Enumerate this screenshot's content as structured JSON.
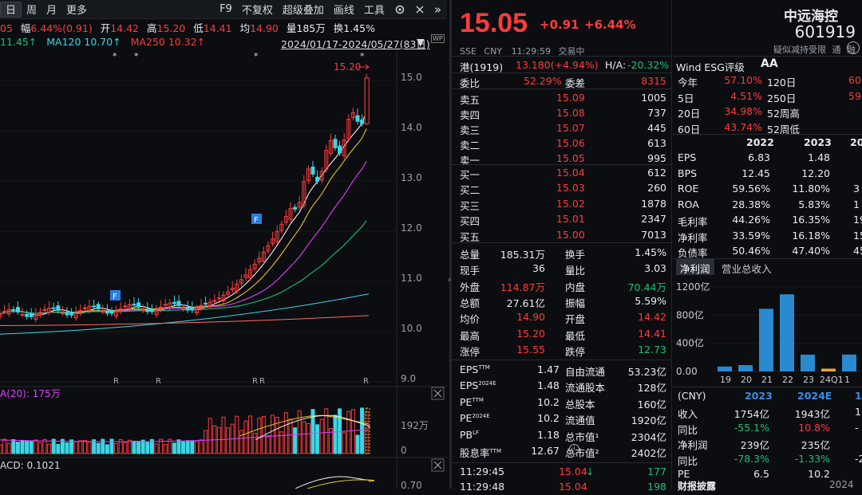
{
  "toolbar": {
    "periods": [
      "日",
      "周",
      "月",
      "更多"
    ],
    "active_period": "日",
    "f9": "F9",
    "fq": "不复权",
    "overlay": "超级叠加",
    "draw": "画线",
    "tools": "工具"
  },
  "info": {
    "prefix": "05",
    "fu_label": "幅",
    "fu_value": "6.44%(0.91)",
    "open_label": "开",
    "open": "14.42",
    "high_label": "高",
    "high": "15.20",
    "low_label": "低",
    "low": "14.41",
    "avg_label": "均",
    "avg": "14.90",
    "vol_label": "量",
    "vol": "185万",
    "turn_label": "换",
    "turn": "1.45%"
  },
  "ma": {
    "ma_a": "11.45↑",
    "ma120": "MA120  10.70↑",
    "ma250": "MA250  10.32↑",
    "range": "2024/01/17-2024/05/27(83日)"
  },
  "kline": {
    "peak_label": "15.20",
    "price_ticks": [
      "15.0",
      "14.0",
      "13.0",
      "12.0",
      "11.0",
      "10.0",
      "9.0"
    ],
    "star_marks": [
      "*",
      "*",
      "*",
      "*"
    ],
    "r_marks": [
      "R",
      "R",
      "R",
      "R",
      "R"
    ],
    "f_badges": [
      "F",
      "F"
    ]
  },
  "volume": {
    "label": "A(20): 175万",
    "ticks": [
      "192万",
      "0"
    ]
  },
  "macd": {
    "label": "ACD: 0.1021",
    "tick": "0.70"
  },
  "quote": {
    "price": "15.05",
    "change": "+0.91",
    "pct": "+6.44%",
    "name": "中远海控",
    "code": "601919",
    "exchange": "SSE",
    "currency": "CNY",
    "time": "11:29:59",
    "status": "交易中",
    "tags": [
      "疑似减持受限",
      "通",
      "融"
    ]
  },
  "hk": {
    "label": "港(1919)",
    "value": "13.180(+4.94%)",
    "ah_label": "H/A:",
    "ah_value": "-20.32%"
  },
  "book": {
    "wb_label": "委比",
    "wb_value": "52.29%",
    "wc_label": "委差",
    "wc_value": "8315",
    "asks": [
      {
        "label": "卖五",
        "price": "15.09",
        "vol": "1005"
      },
      {
        "label": "卖四",
        "price": "15.08",
        "vol": "737"
      },
      {
        "label": "卖三",
        "price": "15.07",
        "vol": "445"
      },
      {
        "label": "卖二",
        "price": "15.06",
        "vol": "613"
      },
      {
        "label": "卖一",
        "price": "15.05",
        "vol": "995"
      }
    ],
    "bids": [
      {
        "label": "买一",
        "price": "15.04",
        "vol": "612"
      },
      {
        "label": "买二",
        "price": "15.03",
        "vol": "260"
      },
      {
        "label": "买三",
        "price": "15.02",
        "vol": "1878"
      },
      {
        "label": "买四",
        "price": "15.01",
        "vol": "2347"
      },
      {
        "label": "买五",
        "price": "15.00",
        "vol": "7013"
      }
    ]
  },
  "stats": [
    {
      "l1": "总量",
      "v1": "185.31万",
      "c1": "white",
      "l2": "换手",
      "v2": "1.45%",
      "c2": "white"
    },
    {
      "l1": "现手",
      "v1": "36",
      "c1": "white",
      "l2": "量比",
      "v2": "3.03",
      "c2": "white"
    },
    {
      "l1": "外盘",
      "v1": "114.87万",
      "c1": "red",
      "l2": "内盘",
      "v2": "70.44万",
      "c2": "green"
    },
    {
      "l1": "总额",
      "v1": "27.61亿",
      "c1": "white",
      "l2": "振幅",
      "v2": "5.59%",
      "c2": "white"
    },
    {
      "l1": "均价",
      "v1": "14.90",
      "c1": "red",
      "l2": "开盘",
      "v2": "14.42",
      "c2": "red"
    },
    {
      "l1": "最高",
      "v1": "15.20",
      "c1": "red",
      "l2": "最低",
      "v2": "14.41",
      "c2": "red"
    },
    {
      "l1": "涨停",
      "v1": "15.55",
      "c1": "red",
      "l2": "跌停",
      "v2": "12.73",
      "c2": "green"
    }
  ],
  "fundamentals": [
    {
      "l1": "EPS",
      "s1": "TTM",
      "v1": "1.47",
      "l2": "自由流通",
      "v2": "53.23亿"
    },
    {
      "l1": "EPS",
      "s1": "2024E",
      "v1": "1.48",
      "l2": "流通股本",
      "v2": "128亿"
    },
    {
      "l1": "PE",
      "s1": "TTM",
      "v1": "10.2",
      "l2": "总股本",
      "v2": "160亿"
    },
    {
      "l1": "PE",
      "s1": "2024E",
      "v1": "10.2",
      "l2": "流通值",
      "v2": "1920亿"
    },
    {
      "l1": "PB",
      "s1": "LF",
      "v1": "1.18",
      "l2": "总市值¹",
      "v2": "2304亿"
    },
    {
      "l1": "股息率",
      "s1": "TTM",
      "v1": "12.67",
      "l2": "总市值²",
      "v2": "2402亿"
    }
  ],
  "ticks": [
    {
      "time": "11:29:45",
      "price": "15.04",
      "arrow": "↓",
      "vol": "177"
    },
    {
      "time": "11:29:48",
      "price": "15.04",
      "arrow": "",
      "vol": "198"
    }
  ],
  "esg": {
    "label": "Wind ESG评级",
    "grade": "AA"
  },
  "perf": [
    {
      "l1": "今年",
      "v1": "57.10%",
      "l2": "120日",
      "v2": "60"
    },
    {
      "l1": "5日",
      "v1": "4.51%",
      "l2": "250日",
      "v2": "59"
    },
    {
      "l1": "20日",
      "v1": "34.98%",
      "l2": "52周高",
      "v2": ""
    },
    {
      "l1": "60日",
      "v1": "43.74%",
      "l2": "52周低",
      "v2": ""
    }
  ],
  "fin": {
    "years": [
      "2022",
      "2023",
      "20"
    ],
    "rows": [
      {
        "label": "EPS",
        "a": "6.83",
        "b": "1.48",
        "c": ""
      },
      {
        "label": "BPS",
        "a": "12.45",
        "b": "12.20",
        "c": ""
      },
      {
        "label": "ROE",
        "a": "59.56%",
        "b": "11.80%",
        "c": "3"
      },
      {
        "label": "ROA",
        "a": "28.38%",
        "b": "5.83%",
        "c": "1"
      },
      {
        "label": "毛利率",
        "a": "44.26%",
        "b": "16.35%",
        "c": "19"
      },
      {
        "label": "净利率",
        "a": "33.59%",
        "b": "16.18%",
        "c": "15"
      },
      {
        "label": "负债率",
        "a": "50.46%",
        "b": "47.40%",
        "c": "45"
      }
    ]
  },
  "profit_tabs": [
    "净利润",
    "营业总收入"
  ],
  "chart_data": {
    "type": "bar",
    "title": "",
    "categories": [
      "19",
      "20",
      "21",
      "22",
      "23",
      "24Q1",
      "1"
    ],
    "values": [
      70,
      90,
      890,
      1095,
      239,
      40,
      240
    ],
    "colors": [
      "#2a8ad0",
      "#2a8ad0",
      "#2a8ad0",
      "#2a8ad0",
      "#2a8ad0",
      "#e8a33d",
      "#2a8ad0"
    ],
    "yticks": [
      "1200亿",
      "800亿",
      "400亿",
      "0.00"
    ],
    "ylim": [
      0,
      1200
    ]
  },
  "summary": {
    "head": [
      "(CNY)",
      "2023",
      "2024E",
      "1"
    ],
    "rows": [
      {
        "label": "收入",
        "a": "1754亿",
        "ac": "white",
        "b": "1943亿",
        "bc": "white",
        "c": "1"
      },
      {
        "label": "同比",
        "a": "-55.1%",
        "ac": "green",
        "b": "10.8%",
        "bc": "red",
        "c": "-"
      },
      {
        "label": "净利润",
        "a": "239亿",
        "ac": "white",
        "b": "235亿",
        "bc": "white",
        "c": ""
      },
      {
        "label": "同比",
        "a": "-78.3%",
        "ac": "green",
        "b": "-1.33%",
        "bc": "green",
        "c": "-2"
      },
      {
        "label": "PE",
        "a": "6.5",
        "ac": "white",
        "b": "10.2",
        "bc": "white",
        "c": ""
      }
    ],
    "footer": "财报披露",
    "footer_date": "2024"
  }
}
